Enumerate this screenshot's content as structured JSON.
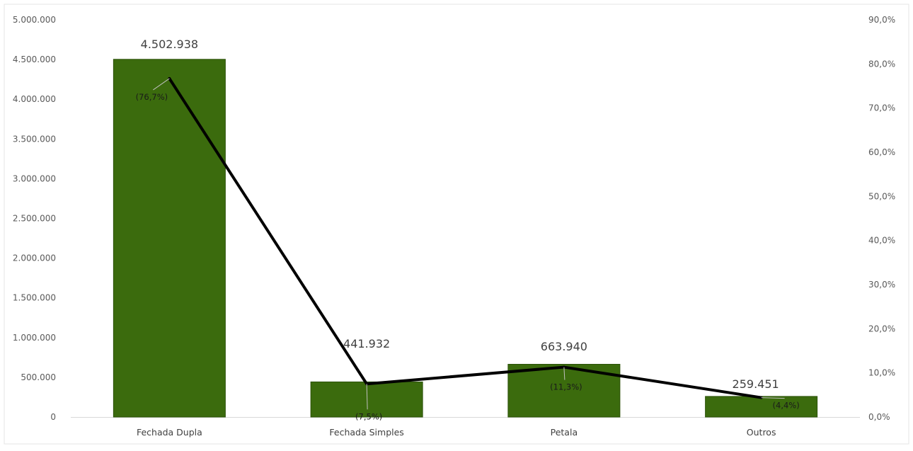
{
  "chart_data": {
    "type": "bar",
    "categories": [
      "Fechada Dupla",
      "Fechada Simples",
      "Petala",
      "Outros"
    ],
    "series": [
      {
        "type": "bar",
        "values": [
          4502938,
          441932,
          663940,
          259451
        ],
        "color": "#3b6b0d",
        "data_labels": [
          "4.502.938",
          "441.932",
          "663.940",
          "259.451"
        ]
      },
      {
        "type": "line",
        "axis": "right",
        "values": [
          76.7,
          7.5,
          11.3,
          4.4
        ],
        "color": "#000000",
        "data_labels": [
          "(76,7%)",
          "(7,5%)",
          "(11,3%)",
          "(4,4%)"
        ]
      }
    ],
    "ylim": [
      0,
      5000000
    ],
    "y2lim": [
      0,
      90
    ],
    "y_ticks": [
      0,
      500000,
      1000000,
      1500000,
      2000000,
      2500000,
      3000000,
      3500000,
      4000000,
      4500000,
      5000000
    ],
    "y_tick_labels": [
      "0",
      "500.000",
      "1.000.000",
      "1.500.000",
      "2.000.000",
      "2.500.000",
      "3.000.000",
      "3.500.000",
      "4.000.000",
      "4.500.000",
      "5.000.000"
    ],
    "y2_ticks": [
      0,
      10,
      20,
      30,
      40,
      50,
      60,
      70,
      80,
      90
    ],
    "y2_tick_labels": [
      "0,0%",
      "10,0%",
      "20,0%",
      "30,0%",
      "40,0%",
      "50,0%",
      "60,0%",
      "70,0%",
      "80,0%",
      "90,0%"
    ],
    "grid": false,
    "legend": "none"
  }
}
